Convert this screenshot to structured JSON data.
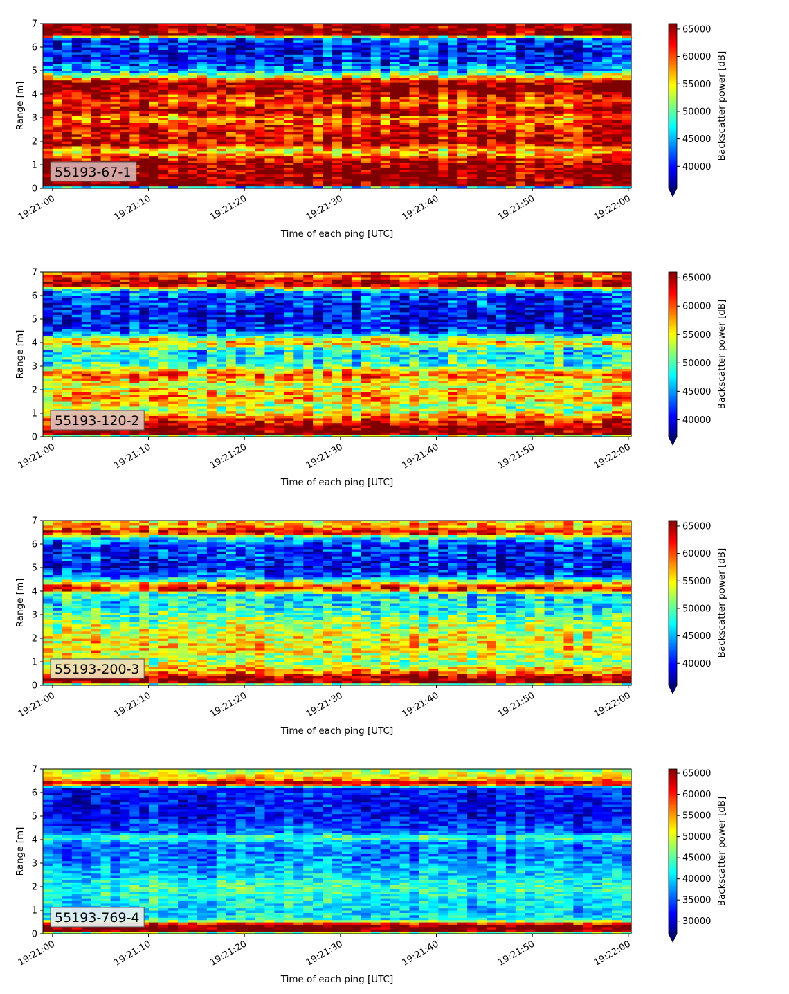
{
  "figure": {
    "xlabel": "Time of each ping [UTC]",
    "ylabel": "Range [m]",
    "colorbar_label": "Backscatter power [dB]",
    "colormap": [
      "#00007f",
      "#0000ff",
      "#007fff",
      "#00ffff",
      "#7fff7f",
      "#ffff00",
      "#ff7f00",
      "#ff0000",
      "#7f0000"
    ]
  },
  "chart_data": [
    {
      "type": "heatmap",
      "label": "55193-67-1",
      "label_box_color": "#d8b0b0",
      "xlabel": "Time of each ping [UTC]",
      "ylabel": "Range [m]",
      "x_ticks": [
        "19:21:00",
        "19:21:10",
        "19:21:20",
        "19:21:30",
        "19:21:40",
        "19:21:50",
        "19:22:00"
      ],
      "xlim_seconds": [
        -1,
        60.3
      ],
      "ylim": [
        0,
        7
      ],
      "y_ticks": [
        0,
        1,
        2,
        3,
        4,
        5,
        6,
        7
      ],
      "colorbar": {
        "label": "Backscatter power [dB]",
        "vmin": 36000,
        "vmax": 66000,
        "ticks": [
          40000,
          45000,
          50000,
          55000,
          60000,
          65000
        ],
        "extend": "min"
      },
      "profile": [
        [
          0.0,
          36000
        ],
        [
          0.15,
          66000
        ],
        [
          0.3,
          66000
        ],
        [
          1.0,
          66000
        ],
        [
          1.3,
          62000
        ],
        [
          1.6,
          55000
        ],
        [
          1.9,
          64000
        ],
        [
          2.3,
          63000
        ],
        [
          2.7,
          62000
        ],
        [
          3.0,
          58000
        ],
        [
          3.3,
          66000
        ],
        [
          3.6,
          60000
        ],
        [
          3.9,
          62000
        ],
        [
          4.2,
          66000
        ],
        [
          4.5,
          66000
        ],
        [
          4.7,
          56000
        ],
        [
          5.0,
          45000
        ],
        [
          5.4,
          41000
        ],
        [
          5.8,
          40000
        ],
        [
          6.2,
          41000
        ],
        [
          6.4,
          43000
        ],
        [
          6.5,
          66000
        ],
        [
          7.0,
          66000
        ]
      ],
      "noise": 7000,
      "ping_count": 61
    },
    {
      "type": "heatmap",
      "label": "55193-120-2",
      "label_box_color": "#e0c0b8",
      "xlabel": "Time of each ping [UTC]",
      "ylabel": "Range [m]",
      "x_ticks": [
        "19:21:00",
        "19:21:10",
        "19:21:20",
        "19:21:30",
        "19:21:40",
        "19:21:50",
        "19:22:00"
      ],
      "xlim_seconds": [
        -1,
        60.3
      ],
      "ylim": [
        0,
        7
      ],
      "y_ticks": [
        0,
        1,
        2,
        3,
        4,
        5,
        6,
        7
      ],
      "colorbar": {
        "label": "Backscatter power [dB]",
        "vmin": 37000,
        "vmax": 66000,
        "ticks": [
          40000,
          45000,
          50000,
          55000,
          60000,
          65000
        ],
        "extend": "min"
      },
      "profile": [
        [
          0.0,
          37000
        ],
        [
          0.1,
          66000
        ],
        [
          0.4,
          66000
        ],
        [
          0.8,
          60000
        ],
        [
          1.2,
          52000
        ],
        [
          1.7,
          58000
        ],
        [
          2.2,
          53000
        ],
        [
          2.7,
          60000
        ],
        [
          3.0,
          50000
        ],
        [
          3.3,
          48000
        ],
        [
          3.7,
          48000
        ],
        [
          4.0,
          58000
        ],
        [
          4.2,
          52000
        ],
        [
          4.5,
          42000
        ],
        [
          5.0,
          40000
        ],
        [
          5.5,
          41000
        ],
        [
          5.9,
          42000
        ],
        [
          6.2,
          45000
        ],
        [
          6.5,
          66000
        ],
        [
          6.7,
          62000
        ],
        [
          7.0,
          58000
        ]
      ],
      "noise": 6500,
      "ping_count": 61
    },
    {
      "type": "heatmap",
      "label": "55193-200-3",
      "label_box_color": "#f0e0b8",
      "xlabel": "Time of each ping [UTC]",
      "ylabel": "Range [m]",
      "x_ticks": [
        "19:21:00",
        "19:21:10",
        "19:21:20",
        "19:21:30",
        "19:21:40",
        "19:21:50",
        "19:22:00"
      ],
      "xlim_seconds": [
        -1,
        60.3
      ],
      "ylim": [
        0,
        7
      ],
      "y_ticks": [
        0,
        1,
        2,
        3,
        4,
        5,
        6,
        7
      ],
      "colorbar": {
        "label": "Backscatter power [dB]",
        "vmin": 36000,
        "vmax": 66000,
        "ticks": [
          40000,
          45000,
          50000,
          55000,
          60000,
          65000
        ],
        "extend": "min"
      },
      "profile": [
        [
          0.0,
          36000
        ],
        [
          0.1,
          66000
        ],
        [
          0.3,
          66000
        ],
        [
          0.5,
          60000
        ],
        [
          1.0,
          52000
        ],
        [
          1.5,
          55000
        ],
        [
          2.0,
          55000
        ],
        [
          2.5,
          53000
        ],
        [
          3.0,
          50000
        ],
        [
          3.5,
          47000
        ],
        [
          3.9,
          48000
        ],
        [
          4.1,
          64000
        ],
        [
          4.3,
          58000
        ],
        [
          4.6,
          44000
        ],
        [
          5.0,
          40000
        ],
        [
          5.5,
          41000
        ],
        [
          6.0,
          42000
        ],
        [
          6.3,
          48000
        ],
        [
          6.5,
          64000
        ],
        [
          6.7,
          58000
        ],
        [
          7.0,
          56000
        ]
      ],
      "noise": 6500,
      "ping_count": 61
    },
    {
      "type": "heatmap",
      "label": "55193-769-4",
      "label_box_color": "#e8f0f0",
      "xlabel": "Time of each ping [UTC]",
      "ylabel": "Range [m]",
      "x_ticks": [
        "19:21:00",
        "19:21:10",
        "19:21:20",
        "19:21:30",
        "19:21:40",
        "19:21:50",
        "19:22:00"
      ],
      "xlim_seconds": [
        -1,
        60.3
      ],
      "ylim": [
        0,
        7
      ],
      "y_ticks": [
        0,
        1,
        2,
        3,
        4,
        5,
        6,
        7
      ],
      "colorbar": {
        "label": "Backscatter power [dB]",
        "vmin": 27000,
        "vmax": 66000,
        "ticks": [
          30000,
          35000,
          40000,
          45000,
          50000,
          55000,
          60000,
          65000
        ],
        "extend": "min"
      },
      "profile": [
        [
          0.0,
          27000
        ],
        [
          0.1,
          66000
        ],
        [
          0.4,
          66000
        ],
        [
          0.6,
          42000
        ],
        [
          1.0,
          40000
        ],
        [
          1.5,
          42000
        ],
        [
          2.0,
          44000
        ],
        [
          2.5,
          40000
        ],
        [
          3.0,
          38000
        ],
        [
          3.5,
          36000
        ],
        [
          3.9,
          38000
        ],
        [
          4.1,
          46000
        ],
        [
          4.3,
          36000
        ],
        [
          5.0,
          32000
        ],
        [
          5.6,
          32000
        ],
        [
          6.2,
          33000
        ],
        [
          6.4,
          66000
        ],
        [
          6.55,
          56000
        ],
        [
          6.8,
          50000
        ],
        [
          7.0,
          48000
        ]
      ],
      "noise": 6000,
      "ping_count": 61
    }
  ]
}
